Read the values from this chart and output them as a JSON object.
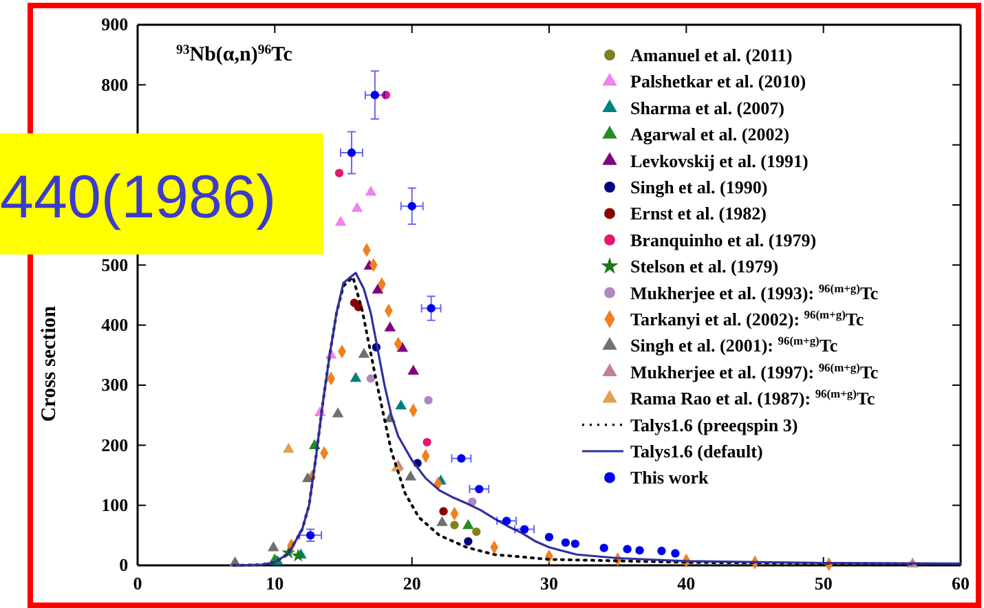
{
  "chart_data": {
    "type": "scatter",
    "ylabel": "Cross section",
    "annotations": [
      "$^{93}$Nb(α,n)$^{96}$Tc",
      "440(1986)"
    ],
    "xlim": [
      0,
      60
    ],
    "xticks": [
      0,
      10,
      20,
      30,
      40,
      50,
      60
    ],
    "ylim": [
      0,
      900
    ],
    "yticks": [
      0,
      100,
      200,
      300,
      400,
      500,
      {
        "value": 600,
        "label": null
      },
      {
        "value": 700,
        "label": null
      },
      800,
      900
    ],
    "grid": false,
    "legend": "top right",
    "series": [
      {
        "name": "Amanuel et al. (2011)",
        "color": "#808020",
        "marker": "circle",
        "x": [
          23.1,
          24.7
        ],
        "values": [
          67,
          56
        ]
      },
      {
        "name": "Palshetkar et al. (2010)",
        "color": "#ee82ee",
        "marker": "triangle",
        "x": [
          13.3,
          14.1,
          14.8,
          16.0,
          17.0
        ],
        "values": [
          254,
          350,
          571,
          594,
          621
        ]
      },
      {
        "name": "Sharma et al. (2007)",
        "color": "#008080",
        "marker": "triangle",
        "x": [
          10.2,
          11.9,
          15.9,
          19.2,
          22.1
        ],
        "values": [
          6,
          17,
          311,
          265,
          140
        ]
      },
      {
        "name": "Agarwal et al. (2002)",
        "color": "#228b22",
        "marker": "triangle",
        "x": [
          10.0,
          12.9,
          24.1
        ],
        "values": [
          9,
          199,
          66
        ]
      },
      {
        "name": "Levkovskij et al. (1991)",
        "color": "#800080",
        "marker": "triangle",
        "x": [
          16.9,
          17.5,
          18.4,
          19.3,
          20.1
        ],
        "values": [
          498,
          458,
          395,
          361,
          323
        ]
      },
      {
        "name": "Singh et al. (1990)",
        "color": "#000080",
        "marker": "circle",
        "x": [
          17.4,
          20.4,
          24.1
        ],
        "values": [
          363,
          170,
          40
        ]
      },
      {
        "name": "Ernst et al. (1982)",
        "color": "#8b0000",
        "marker": "circle",
        "x": [
          15.8,
          16.1,
          22.3
        ],
        "values": [
          437,
          430,
          90
        ]
      },
      {
        "name": "Branquinho et al. (1979)",
        "color": "#e6176f",
        "marker": "circle",
        "x": [
          14.7,
          18.1,
          21.1
        ],
        "values": [
          653,
          783,
          205
        ]
      },
      {
        "name": "Stelson et al. (1979)",
        "color": "#1a7a1a",
        "marker": "star",
        "x": [
          11.0,
          11.7
        ],
        "values": [
          21,
          16
        ]
      },
      {
        "name": "Mukherjee et al. (1993): $^{96(m+g)}$Tc",
        "color": "#b088c0",
        "marker": "circle",
        "x": [
          17.0,
          21.2,
          24.4
        ],
        "values": [
          311,
          275,
          106
        ]
      },
      {
        "name": "Tarkanyi et al. (2002): $^{96(m+g)}$Tc",
        "color": "#f08020",
        "marker": "diamond",
        "x": [
          11.2,
          12.7,
          13.6,
          14.1,
          14.9,
          16.7,
          17.2,
          17.8,
          18.3,
          19.0,
          20.1,
          21.0,
          21.9,
          23.1,
          26,
          30,
          35,
          40,
          45,
          50.4
        ],
        "values": [
          33,
          147,
          187,
          311,
          356,
          525,
          500,
          468,
          424,
          369,
          258,
          182,
          136,
          86,
          30,
          15,
          10,
          8,
          5,
          2
        ]
      },
      {
        "name": "Singh et al. (2001): $^{96(m+g)}$Tc",
        "color": "#707070",
        "marker": "triangle",
        "x": [
          7.1,
          9.9,
          12.4,
          14.6,
          16.5,
          18.4,
          19.9,
          22.2
        ],
        "values": [
          4,
          29,
          144,
          252,
          351,
          244,
          147,
          71
        ]
      },
      {
        "name": "Mukherjee et al. (1997): $^{96(m+g)}$Tc",
        "color": "#c08090",
        "marker": "triangle",
        "x": [
          19.0,
          56.5
        ],
        "values": [
          165,
          2
        ]
      },
      {
        "name": "Rama Rao et al. (1987): $^{96(m+g)}$Tc",
        "color": "#e0a050",
        "marker": "triangle",
        "x": [
          11.0,
          18.9
        ],
        "values": [
          193,
          162
        ]
      },
      {
        "name": "Talys1.6 (preeqspin 3)",
        "type": "line",
        "line_style": "dotted",
        "color": "#000000",
        "x": [
          7,
          9,
          10,
          11,
          12,
          12.5,
          13,
          13.5,
          14,
          14.5,
          15,
          15.7,
          16.4,
          17.4,
          18.5,
          19.5,
          20.5,
          22,
          24,
          26,
          30,
          40,
          60
        ],
        "values": [
          0,
          1,
          5,
          20,
          60,
          100,
          180,
          270,
          350,
          420,
          465,
          480,
          422,
          307,
          190,
          120,
          80,
          50,
          30,
          18,
          10,
          5,
          2
        ]
      },
      {
        "name": "Talys1.6 (default)",
        "type": "line",
        "line_style": "solid",
        "color": "#3030a0",
        "x": [
          7,
          9,
          10,
          11,
          12,
          12.5,
          13,
          13.5,
          14,
          14.5,
          15,
          15.9,
          16.5,
          17,
          17.5,
          18,
          18.5,
          19,
          20,
          21,
          22,
          23,
          24,
          25,
          26,
          27,
          28,
          29,
          30,
          32,
          35,
          40,
          50,
          60
        ],
        "values": [
          0,
          1,
          5,
          20,
          60,
          100,
          180,
          270,
          350,
          420,
          470,
          487,
          460,
          420,
          360,
          300,
          250,
          215,
          175,
          145,
          125,
          113,
          103,
          92,
          78,
          65,
          54,
          40,
          30,
          18,
          12,
          7,
          4,
          3
        ]
      },
      {
        "name": "This work",
        "color": "#0000ee",
        "marker": "circle",
        "x": [
          12.6,
          15.6,
          17.3,
          20.0,
          21.4,
          23.6,
          24.9,
          26.9,
          28.2,
          30.0,
          31.2,
          31.9,
          34.0,
          35.7,
          36.6,
          38.2,
          39.2
        ],
        "values": [
          50,
          687,
          783,
          598,
          428,
          178,
          127,
          74,
          60,
          47,
          38,
          36,
          29,
          27,
          25,
          24,
          20
        ],
        "errors": [
          10,
          35,
          40,
          30,
          20,
          null,
          null,
          null,
          null,
          null,
          null,
          null,
          null,
          null,
          null,
          null,
          null
        ],
        "xerrors": [
          0.8,
          0.8,
          0.7,
          0.8,
          0.7,
          0.7,
          0.7,
          0.7,
          0.7,
          null,
          null,
          null,
          null,
          null,
          null,
          null,
          null
        ]
      }
    ]
  }
}
